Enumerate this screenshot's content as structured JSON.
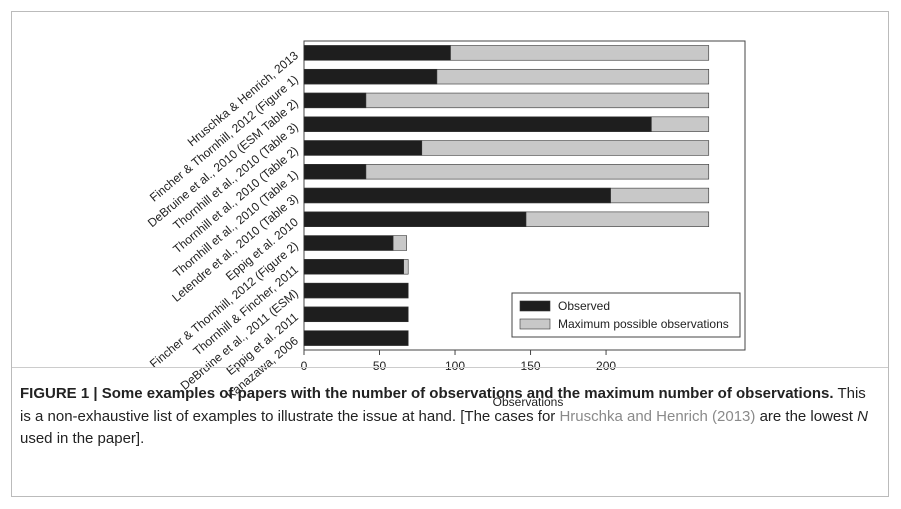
{
  "chart_data": {
    "type": "barh-overlay",
    "categories": [
      "Hruschka & Henrich, 2013",
      "Fincher & Thornhill, 2012 (Figure 1)",
      "DeBruine et al., 2010 (ESM Table 2)",
      "Thornhill et al., 2010 (Table 3)",
      "Thornhill et al., 2010 (Table 2)",
      "Thornhill et al., 2010 (Table 1)",
      "Letendre et al., 2010 (Table 3)",
      "Eppig et al. 2010",
      "Fincher & Thornhill, 2012 (Figure 2)",
      "Thornhill & Fincher, 2011",
      "DeBruine et al., 2011 (ESM)",
      "Eppig et al. 2011",
      "Kanazawa, 2006"
    ],
    "series": [
      {
        "name": "Maximum possible observations",
        "color": "#c8c8c8",
        "values": [
          268,
          268,
          268,
          268,
          268,
          268,
          268,
          268,
          68,
          69,
          69,
          69,
          69
        ]
      },
      {
        "name": "Observed",
        "color": "#1e1e1e",
        "values": [
          97,
          88,
          41,
          230,
          78,
          41,
          203,
          147,
          59,
          66,
          69,
          69,
          69
        ]
      }
    ],
    "xlabel": "Observations",
    "xlim": [
      0,
      292
    ],
    "xticks": [
      0,
      50,
      100,
      150,
      200
    ],
    "legend": "lower-right"
  },
  "caption": {
    "label": "FIGURE 1 | Some examples of papers with the number of observations and the maximum number of observations.",
    "text": "This is a non-exhaustive list of examples to illustrate the issue at hand. [The cases for",
    "link": "Hruschka and Henrich (2013)",
    "text2": "are the lowest",
    "italic": "N",
    "text3": "used in the paper]."
  }
}
